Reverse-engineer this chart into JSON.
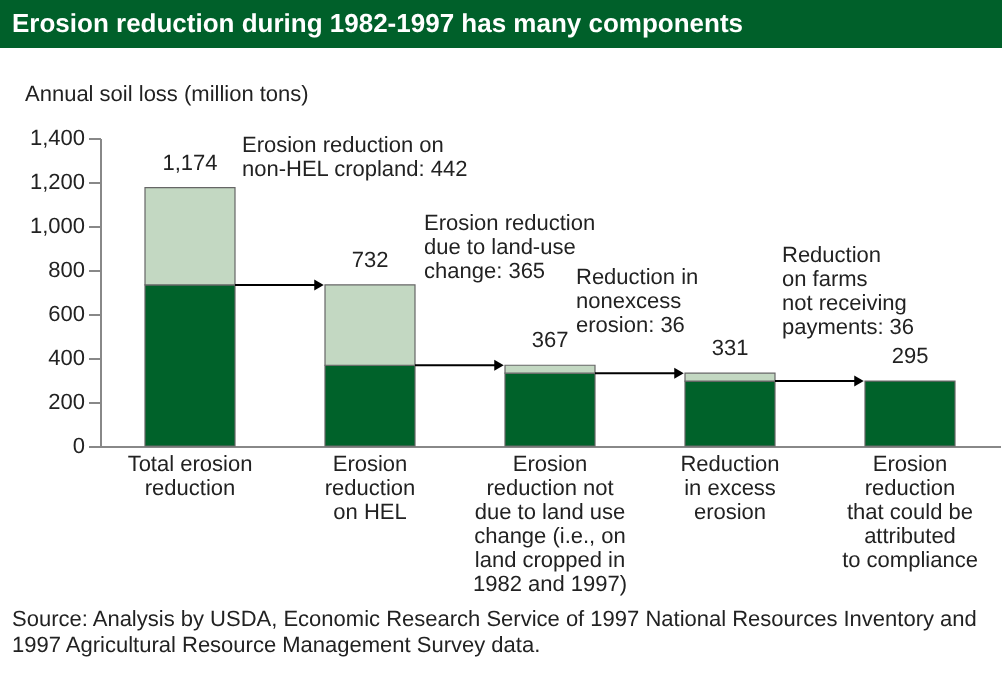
{
  "chart_data": {
    "type": "bar",
    "title": "Erosion reduction during 1982-1997 has many components",
    "ylabel": "Annual soil loss (million tons)",
    "categories": [
      "Total erosion\nreduction",
      "Erosion\nreduction\non HEL",
      "Erosion\nreduction not\ndue to land use\nchange (i.e., on\nland cropped in\n1982 and 1997)",
      "Reduction\nin excess\nerosion",
      "Erosion\nreduction\nthat could be\nattributed\nto compliance"
    ],
    "series": [
      {
        "color": "#00622a",
        "values": [
          732,
          367,
          331,
          295,
          295
        ]
      },
      {
        "color": "#c3d8c2",
        "values": [
          442,
          365,
          36,
          36,
          null
        ]
      }
    ],
    "stacked": true,
    "ylim": [
      0,
      1400
    ],
    "yticks": [
      0,
      200,
      400,
      600,
      800,
      {
        "value": 1000,
        "label": "1,000"
      },
      {
        "value": 1200,
        "label": "1,200"
      },
      {
        "value": 1400,
        "label": "1,400"
      }
    ],
    "totals": [
      "1,174",
      "732",
      "367",
      "331",
      "295"
    ],
    "annotations": [
      "Erosion reduction on\nnon-HEL cropland: 442",
      "Erosion reduction\ndue to land-use\nchange: 365",
      "Reduction in\nnonexcess\nerosion: 36",
      "Reduction\non farms\nnot receiving\npayments: 36",
      "Source: Analysis by USDA, Economic Research Service of 1997 National Resources Inventory and 1997 Agricultural Resource Management Survey data."
    ]
  }
}
